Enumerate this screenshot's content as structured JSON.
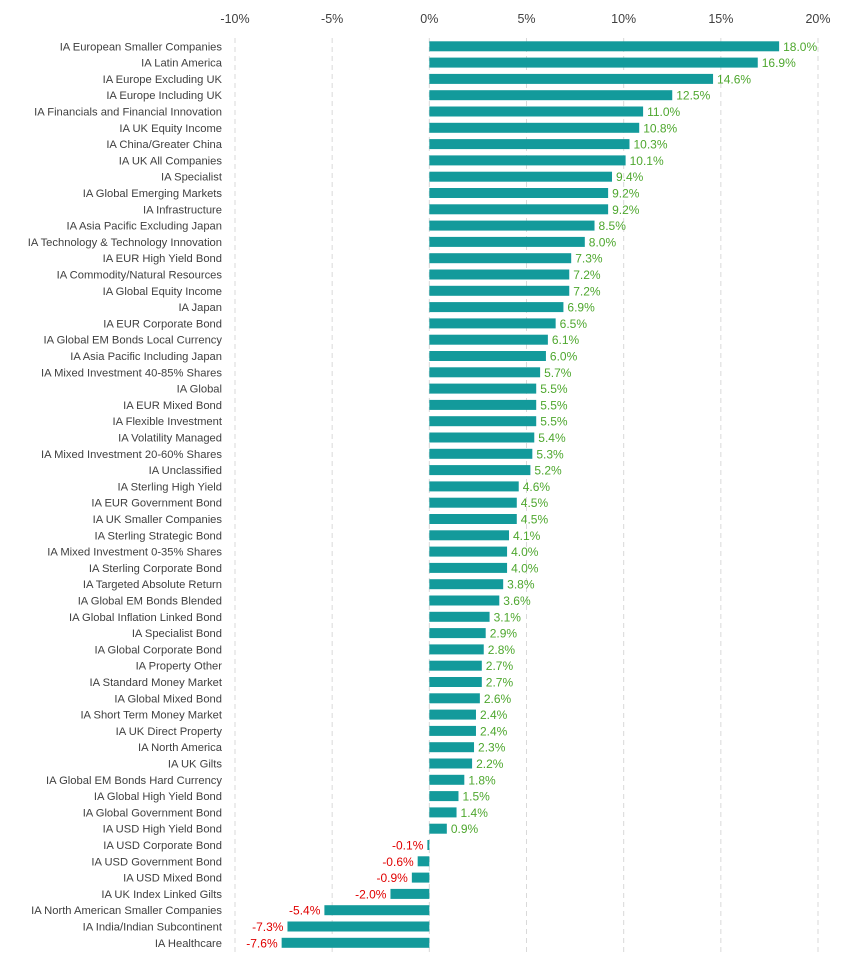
{
  "chart_data": {
    "type": "bar",
    "orientation": "horizontal",
    "title": "",
    "xlabel": "",
    "ylabel": "",
    "xlim": [
      -10,
      20
    ],
    "x_ticks": [
      -10,
      -5,
      0,
      5,
      10,
      15,
      20
    ],
    "x_tick_labels": [
      "-10%",
      "-5%",
      "0%",
      "5%",
      "10%",
      "15%",
      "20%"
    ],
    "x_axis_position": "top",
    "grid": "vertical dashed",
    "legend": "none",
    "colors": {
      "bar": "#139a9b",
      "positive_label": "#4ea72e",
      "negative_label": "#e00000",
      "axis_text": "#404040",
      "grid": "#d9d9d9"
    },
    "categories": [
      "IA European Smaller Companies",
      "IA Latin America",
      "IA Europe Excluding UK",
      "IA Europe Including UK",
      "IA Financials and Financial Innovation",
      "IA UK Equity Income",
      "IA China/Greater China",
      "IA UK All Companies",
      "IA Specialist",
      "IA Global Emerging Markets",
      "IA Infrastructure",
      "IA Asia Pacific Excluding Japan",
      "IA Technology & Technology Innovation",
      "IA EUR High Yield Bond",
      "IA Commodity/Natural Resources",
      "IA Global Equity Income",
      "IA Japan",
      "IA EUR Corporate Bond",
      "IA Global EM Bonds Local Currency",
      "IA Asia Pacific Including Japan",
      "IA Mixed Investment 40-85% Shares",
      "IA Global",
      "IA EUR Mixed Bond",
      "IA Flexible Investment",
      "IA Volatility Managed",
      "IA Mixed Investment 20-60% Shares",
      "IA Unclassified",
      "IA Sterling High Yield",
      "IA EUR Government Bond",
      "IA UK Smaller Companies",
      "IA Sterling Strategic Bond",
      "IA Mixed Investment 0-35% Shares",
      "IA Sterling Corporate Bond",
      "IA Targeted Absolute Return",
      "IA Global EM Bonds Blended",
      "IA Global Inflation Linked Bond",
      "IA Specialist Bond",
      "IA Global Corporate Bond",
      "IA Property Other",
      "IA Standard Money Market",
      "IA Global Mixed Bond",
      "IA Short Term Money Market",
      "IA UK Direct Property",
      "IA North America",
      "IA UK Gilts",
      "IA Global EM Bonds Hard Currency",
      "IA Global High Yield Bond",
      "IA Global Government Bond",
      "IA USD High Yield Bond",
      "IA USD Corporate Bond",
      "IA USD Government Bond",
      "IA USD Mixed Bond",
      "IA UK Index Linked Gilts",
      "IA North American Smaller Companies",
      "IA India/Indian Subcontinent",
      "IA Healthcare"
    ],
    "values": [
      18.0,
      16.9,
      14.6,
      12.5,
      11.0,
      10.8,
      10.3,
      10.1,
      9.4,
      9.2,
      9.2,
      8.5,
      8.0,
      7.3,
      7.2,
      7.2,
      6.9,
      6.5,
      6.1,
      6.0,
      5.7,
      5.5,
      5.5,
      5.5,
      5.4,
      5.3,
      5.2,
      4.6,
      4.5,
      4.5,
      4.1,
      4.0,
      4.0,
      3.8,
      3.6,
      3.1,
      2.9,
      2.8,
      2.7,
      2.7,
      2.6,
      2.4,
      2.4,
      2.3,
      2.2,
      1.8,
      1.5,
      1.4,
      0.9,
      -0.1,
      -0.6,
      -0.9,
      -2.0,
      -5.4,
      -7.3,
      -7.6
    ],
    "value_labels": [
      "18.0%",
      "16.9%",
      "14.6%",
      "12.5%",
      "11.0%",
      "10.8%",
      "10.3%",
      "10.1%",
      "9.4%",
      "9.2%",
      "9.2%",
      "8.5%",
      "8.0%",
      "7.3%",
      "7.2%",
      "7.2%",
      "6.9%",
      "6.5%",
      "6.1%",
      "6.0%",
      "5.7%",
      "5.5%",
      "5.5%",
      "5.5%",
      "5.4%",
      "5.3%",
      "5.2%",
      "4.6%",
      "4.5%",
      "4.5%",
      "4.1%",
      "4.0%",
      "4.0%",
      "3.8%",
      "3.6%",
      "3.1%",
      "2.9%",
      "2.8%",
      "2.7%",
      "2.7%",
      "2.6%",
      "2.4%",
      "2.4%",
      "2.3%",
      "2.2%",
      "1.8%",
      "1.5%",
      "1.4%",
      "0.9%",
      "-0.1%",
      "-0.6%",
      "-0.9%",
      "-2.0%",
      "-5.4%",
      "-7.3%",
      "-7.6%"
    ]
  }
}
